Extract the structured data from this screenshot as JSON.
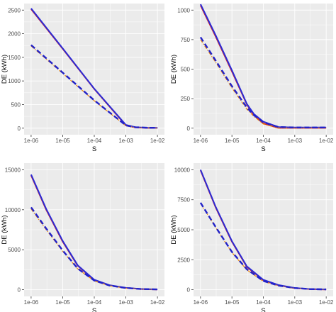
{
  "chart_data": [
    {
      "type": "line",
      "xscale": "log10",
      "xlim": [
        1e-06,
        0.01
      ],
      "xticks": [
        "1e-06",
        "1e-05",
        "1e-04",
        "1e-03",
        "1e-02"
      ],
      "ylim": [
        0,
        2500
      ],
      "yticks": [
        "0",
        "500",
        "1000",
        "1500",
        "2000",
        "2500"
      ],
      "xlabel": "S",
      "ylabel": "DE (kWh)",
      "grid": true,
      "series": [
        {
          "style": "solid",
          "color": "#d62728",
          "x": [
            1e-06,
            1e-05,
            0.0001,
            0.001,
            0.002,
            0.005,
            0.01
          ],
          "y": [
            2520,
            1680,
            830,
            60,
            15,
            5,
            5
          ]
        },
        {
          "style": "solid",
          "color": "#2b2bd6",
          "x": [
            1e-06,
            1e-05,
            0.0001,
            0.001,
            0.002,
            0.005,
            0.01
          ],
          "y": [
            2535,
            1690,
            835,
            70,
            20,
            8,
            8
          ]
        },
        {
          "style": "dashdot",
          "color": "#e8870e",
          "x": [
            1e-06,
            1e-05,
            0.0001,
            0.001,
            0.002,
            0.005,
            0.01
          ],
          "y": [
            1740,
            1160,
            580,
            50,
            15,
            5,
            5
          ]
        },
        {
          "style": "dashed",
          "color": "#2222c8",
          "x": [
            1e-06,
            1e-05,
            0.0001,
            0.001,
            0.002,
            0.005,
            0.01
          ],
          "y": [
            1760,
            1175,
            590,
            60,
            20,
            8,
            8
          ]
        }
      ]
    },
    {
      "type": "line",
      "xscale": "log10",
      "xlim": [
        1e-06,
        0.01
      ],
      "xticks": [
        "1e-06",
        "1e-05",
        "1e-04",
        "1e-03",
        "1e-02"
      ],
      "ylim": [
        0,
        1000
      ],
      "yticks": [
        "0",
        "250",
        "500",
        "750",
        "1000"
      ],
      "xlabel": "S",
      "ylabel": "DE (kWh)",
      "grid": true,
      "series": [
        {
          "style": "solid",
          "color": "#d62728",
          "x": [
            1e-06,
            3e-06,
            1e-05,
            3e-05,
            5e-05,
            0.0001,
            0.0003,
            0.001,
            0.01
          ],
          "y": [
            1040,
            780,
            480,
            200,
            110,
            40,
            2,
            2,
            2
          ]
        },
        {
          "style": "solid",
          "color": "#2b2bd6",
          "x": [
            1e-06,
            3e-06,
            1e-05,
            3e-05,
            5e-05,
            0.0001,
            0.0003,
            0.001,
            0.01
          ],
          "y": [
            1050,
            790,
            490,
            205,
            120,
            55,
            10,
            6,
            6
          ]
        },
        {
          "style": "dashdot",
          "color": "#e8870e",
          "x": [
            1e-06,
            3e-06,
            1e-05,
            3e-05,
            5e-05,
            0.0001,
            0.0003,
            0.001,
            0.01
          ],
          "y": [
            750,
            560,
            340,
            160,
            100,
            35,
            2,
            2,
            2
          ]
        },
        {
          "style": "dashed",
          "color": "#2222c8",
          "x": [
            1e-06,
            3e-06,
            1e-05,
            3e-05,
            5e-05,
            0.0001,
            0.0003,
            0.001,
            0.01
          ],
          "y": [
            770,
            575,
            355,
            175,
            110,
            50,
            10,
            6,
            6
          ]
        }
      ]
    },
    {
      "type": "line",
      "xscale": "log10",
      "xlim": [
        1e-06,
        0.01
      ],
      "xticks": [
        "1e-06",
        "1e-05",
        "1e-04",
        "1e-03",
        "1e-02"
      ],
      "ylim": [
        0,
        15000
      ],
      "yticks": [
        "0",
        "5000",
        "10000",
        "15000"
      ],
      "xlabel": "S",
      "ylabel": "DE (kWh)",
      "grid": true,
      "series": [
        {
          "style": "solid",
          "color": "#d62728",
          "x": [
            1e-06,
            3e-06,
            1e-05,
            3e-05,
            0.0001,
            0.0003,
            0.001,
            0.003,
            0.01
          ],
          "y": [
            14300,
            10000,
            6000,
            3000,
            1200,
            550,
            220,
            90,
            30
          ]
        },
        {
          "style": "solid",
          "color": "#2b2bd6",
          "x": [
            1e-06,
            3e-06,
            1e-05,
            3e-05,
            0.0001,
            0.0003,
            0.001,
            0.003,
            0.01
          ],
          "y": [
            14400,
            10100,
            6100,
            3050,
            1250,
            580,
            240,
            100,
            40
          ]
        },
        {
          "style": "dashdot",
          "color": "#e8870e",
          "x": [
            1e-06,
            3e-06,
            1e-05,
            3e-05,
            0.0001,
            0.0003,
            0.001,
            0.003,
            0.01
          ],
          "y": [
            10100,
            7500,
            4800,
            2600,
            1100,
            500,
            200,
            80,
            30
          ]
        },
        {
          "style": "dashed",
          "color": "#2222c8",
          "x": [
            1e-06,
            3e-06,
            1e-05,
            3e-05,
            0.0001,
            0.0003,
            0.001,
            0.003,
            0.01
          ],
          "y": [
            10300,
            7650,
            4900,
            2650,
            1150,
            530,
            220,
            90,
            40
          ]
        }
      ]
    },
    {
      "type": "line",
      "xscale": "log10",
      "xlim": [
        1e-06,
        0.01
      ],
      "xticks": [
        "1e-06",
        "1e-05",
        "1e-04",
        "1e-03",
        "1e-02"
      ],
      "ylim": [
        0,
        10000
      ],
      "yticks": [
        "0",
        "2500",
        "5000",
        "7500",
        "10000"
      ],
      "xlabel": "S",
      "ylabel": "DE (kWh)",
      "grid": true,
      "series": [
        {
          "style": "solid",
          "color": "#d62728",
          "x": [
            1e-06,
            3e-06,
            1e-05,
            3e-05,
            0.0001,
            0.0003,
            0.001,
            0.003,
            0.01
          ],
          "y": [
            9950,
            6900,
            4000,
            1900,
            800,
            380,
            130,
            50,
            20
          ]
        },
        {
          "style": "solid",
          "color": "#2b2bd6",
          "x": [
            1e-06,
            3e-06,
            1e-05,
            3e-05,
            0.0001,
            0.0003,
            0.001,
            0.003,
            0.01
          ],
          "y": [
            10000,
            6950,
            4050,
            1950,
            830,
            400,
            150,
            60,
            30
          ]
        },
        {
          "style": "dashdot",
          "color": "#e8870e",
          "x": [
            1e-06,
            3e-06,
            1e-05,
            3e-05,
            0.0001,
            0.0003,
            0.001,
            0.003,
            0.01
          ],
          "y": [
            7200,
            5200,
            3100,
            1650,
            700,
            330,
            120,
            45,
            20
          ]
        },
        {
          "style": "dashed",
          "color": "#2222c8",
          "x": [
            1e-06,
            3e-06,
            1e-05,
            3e-05,
            0.0001,
            0.0003,
            0.001,
            0.003,
            0.01
          ],
          "y": [
            7250,
            5250,
            3150,
            1700,
            730,
            350,
            140,
            55,
            30
          ]
        }
      ]
    }
  ]
}
